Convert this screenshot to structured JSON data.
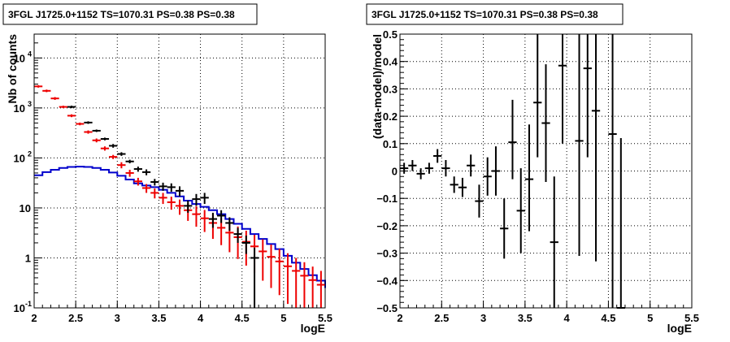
{
  "colors": {
    "model": "#0000cc",
    "data_fit": "#ee0000",
    "data": "#000000",
    "frame": "#000000",
    "grid": "#000000"
  },
  "chart_data": [
    {
      "type": "scatter",
      "title": "3FGL J1725.0+1152 TS=1070.31 PS=0.38 PS=0.38",
      "xlabel": "logE",
      "ylabel": "Nb of counts",
      "yscale": "log",
      "xlim": [
        2,
        5.5
      ],
      "ylim": [
        0.1,
        30000
      ],
      "grid": true,
      "xticks": [
        "2",
        "2.5",
        "3",
        "3.5",
        "4",
        "4.5",
        "5",
        "5.5"
      ],
      "yticks": [
        {
          "value": 0.1,
          "base": "10",
          "exp": "-1"
        },
        {
          "value": 1,
          "base": "1",
          "exp": ""
        },
        {
          "value": 10,
          "base": "10",
          "exp": ""
        },
        {
          "value": 100,
          "base": "10",
          "exp": "2"
        },
        {
          "value": 1000,
          "base": "10",
          "exp": "3"
        },
        {
          "value": 10000,
          "base": "10",
          "exp": "4"
        }
      ],
      "series": [
        {
          "role": "model_histogram",
          "bin_edges": [
            2.0,
            2.1,
            2.2,
            2.3,
            2.4,
            2.5,
            2.6,
            2.7,
            2.8,
            2.9,
            3.0,
            3.1,
            3.2,
            3.3,
            3.4,
            3.5,
            3.6,
            3.7,
            3.8,
            3.9,
            4.0,
            4.1,
            4.2,
            4.3,
            4.4,
            4.5,
            4.6,
            4.7,
            4.8,
            4.9,
            5.0,
            5.1,
            5.2,
            5.3,
            5.4,
            5.5
          ],
          "values": [
            45,
            52,
            58,
            63,
            66,
            67,
            66,
            63,
            58,
            51,
            44,
            37,
            31,
            28,
            26,
            23,
            20,
            17,
            14,
            12,
            10.5,
            9,
            7.5,
            6,
            4.8,
            3.8,
            3,
            2.4,
            1.9,
            1.5,
            1.1,
            0.8,
            0.6,
            0.45,
            0.35,
            0.25
          ]
        },
        {
          "role": "model_counts",
          "x": [
            2.05,
            2.15,
            2.25,
            2.35,
            2.45,
            2.55,
            2.65,
            2.75,
            2.85,
            2.95,
            3.05,
            3.15,
            3.25,
            3.35,
            3.45,
            3.55,
            3.65,
            3.75,
            3.85,
            3.95,
            4.05,
            4.15,
            4.25,
            4.35,
            4.45,
            4.55,
            4.65,
            4.75,
            4.85,
            4.95,
            5.05,
            5.15,
            5.25,
            5.35,
            5.45
          ],
          "y": [
            2700,
            2200,
            1550,
            1050,
            700,
            480,
            330,
            225,
            155,
            105,
            72,
            50,
            34,
            25,
            20,
            16,
            13,
            11,
            9,
            7.5,
            6.2,
            5,
            4,
            3.2,
            2.6,
            2.1,
            1.7,
            1.35,
            1.05,
            0.85,
            0.68,
            0.55,
            0.44,
            0.36,
            0.29
          ],
          "y_low": [
            2550,
            2070,
            1450,
            990,
            655,
            450,
            305,
            205,
            140,
            95,
            62,
            42,
            28,
            20,
            15.5,
            12,
            9.2,
            7.3,
            5.5,
            4.2,
            3.3,
            2.4,
            1.8,
            1.3,
            0.95,
            0.7,
            0.5,
            0.35,
            0.25,
            0.18,
            0.12,
            0.1,
            0.1,
            0.1,
            0.1
          ],
          "y_high": [
            2850,
            2330,
            1650,
            1110,
            745,
            510,
            355,
            245,
            170,
            115,
            82,
            58,
            40,
            30,
            24.5,
            20,
            16.8,
            14.7,
            12.5,
            10.8,
            9.1,
            7.6,
            6.2,
            5.1,
            4.25,
            3.5,
            2.9,
            2.35,
            1.85,
            1.52,
            1.24,
            1.0,
            0.82,
            0.67,
            0.55
          ]
        },
        {
          "role": "data_counts",
          "x": [
            2.45,
            2.65,
            2.75,
            2.85,
            2.95,
            3.05,
            3.15,
            3.25,
            3.35,
            3.45,
            3.55,
            3.65,
            3.75,
            3.85,
            3.95,
            4.05,
            4.15,
            4.25,
            4.35,
            4.45,
            4.55,
            4.65
          ],
          "y": [
            1050,
            510,
            350,
            240,
            175,
            120,
            85,
            60,
            52,
            33,
            27,
            26,
            22,
            11,
            15,
            16,
            6,
            7,
            5,
            3,
            2,
            1
          ],
          "y_low": [
            990,
            480,
            330,
            225,
            160,
            110,
            78,
            53,
            45,
            28,
            22,
            21,
            17,
            8,
            11,
            12,
            4,
            5,
            3.5,
            2,
            1.2,
            0.1
          ],
          "y_high": [
            1110,
            540,
            370,
            255,
            190,
            130,
            92,
            67,
            59,
            38,
            32,
            31,
            27,
            14,
            19,
            20,
            8,
            9,
            6.5,
            4,
            2.8,
            1.6
          ],
          "x_half_width": 0.05
        }
      ]
    },
    {
      "type": "scatter",
      "title": "3FGL J1725.0+1152 TS=1070.31 PS=0.38 PS=0.38",
      "xlabel": "logE",
      "ylabel": "(data-model)/model",
      "xlim": [
        2,
        5.5
      ],
      "ylim": [
        -0.5,
        0.5
      ],
      "grid": true,
      "xticks": [
        "2",
        "2.5",
        "3",
        "3.5",
        "4",
        "4.5",
        "5",
        "5.5"
      ],
      "yticks": [
        "−0.5",
        "−0.4",
        "−0.3",
        "−0.2",
        "−0.1",
        "0",
        "0.1",
        "0.2",
        "0.3",
        "0.4",
        "0.5"
      ],
      "series": [
        {
          "role": "residuals",
          "x": [
            2.05,
            2.15,
            2.25,
            2.35,
            2.45,
            2.55,
            2.65,
            2.75,
            2.85,
            2.95,
            3.05,
            3.15,
            3.25,
            3.35,
            3.45,
            3.55,
            3.65,
            3.75,
            3.85,
            3.95,
            4.15,
            4.25,
            4.35,
            4.55,
            4.65
          ],
          "y": [
            0.01,
            0.02,
            -0.01,
            0.01,
            0.055,
            0.01,
            -0.05,
            -0.06,
            0.02,
            -0.11,
            -0.02,
            0.0,
            -0.21,
            0.105,
            -0.145,
            -0.03,
            0.25,
            0.175,
            -0.26,
            0.385,
            0.11,
            0.375,
            0.22,
            0.135,
            -0.5
          ],
          "y_low": [
            -0.01,
            0.0,
            -0.03,
            -0.01,
            0.03,
            -0.02,
            -0.08,
            -0.095,
            -0.02,
            -0.17,
            -0.09,
            -0.09,
            -0.32,
            -0.03,
            -0.3,
            -0.22,
            0.05,
            -0.04,
            -0.5,
            0.1,
            -0.31,
            0.05,
            -0.33,
            -0.5,
            -0.5
          ],
          "y_high": [
            0.03,
            0.04,
            0.01,
            0.03,
            0.08,
            0.04,
            -0.02,
            -0.025,
            0.06,
            -0.05,
            0.05,
            0.09,
            -0.1,
            0.26,
            0.01,
            0.17,
            0.5,
            0.39,
            -0.02,
            0.5,
            0.5,
            0.5,
            0.5,
            0.5,
            0.12
          ],
          "x_half_width": 0.05
        }
      ]
    }
  ]
}
